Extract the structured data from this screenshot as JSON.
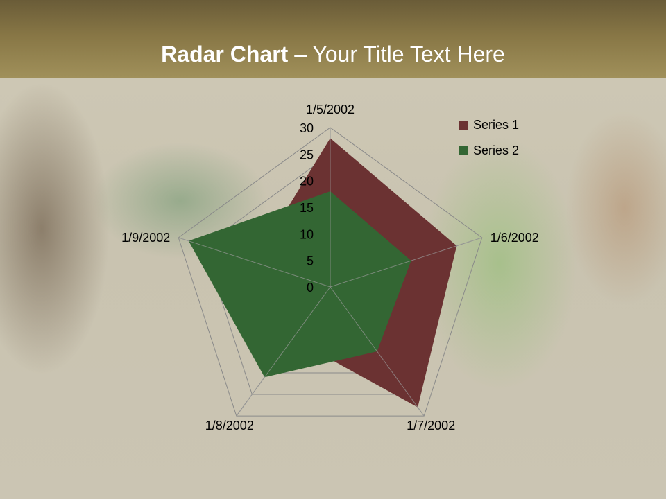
{
  "slide": {
    "title_bold": "Radar Chart",
    "title_rest": " – Your Title Text Here"
  },
  "chart_data": {
    "type": "radar",
    "title": "",
    "categories": [
      "1/5/2002",
      "1/6/2002",
      "1/7/2002",
      "1/8/2002",
      "1/9/2002"
    ],
    "series": [
      {
        "name": "Series 1",
        "values": [
          28,
          25,
          28,
          12,
          15
        ],
        "color": "#6b3232"
      },
      {
        "name": "Series 2",
        "values": [
          18,
          16,
          15,
          21,
          28
        ],
        "color": "#336633"
      }
    ],
    "rlim": [
      0,
      30
    ],
    "ticks": [
      "0",
      "5",
      "10",
      "15",
      "20",
      "25",
      "30"
    ],
    "tick_values": [
      0,
      5,
      10,
      15,
      20,
      25,
      30
    ],
    "grid": true,
    "legend": "top-right"
  }
}
